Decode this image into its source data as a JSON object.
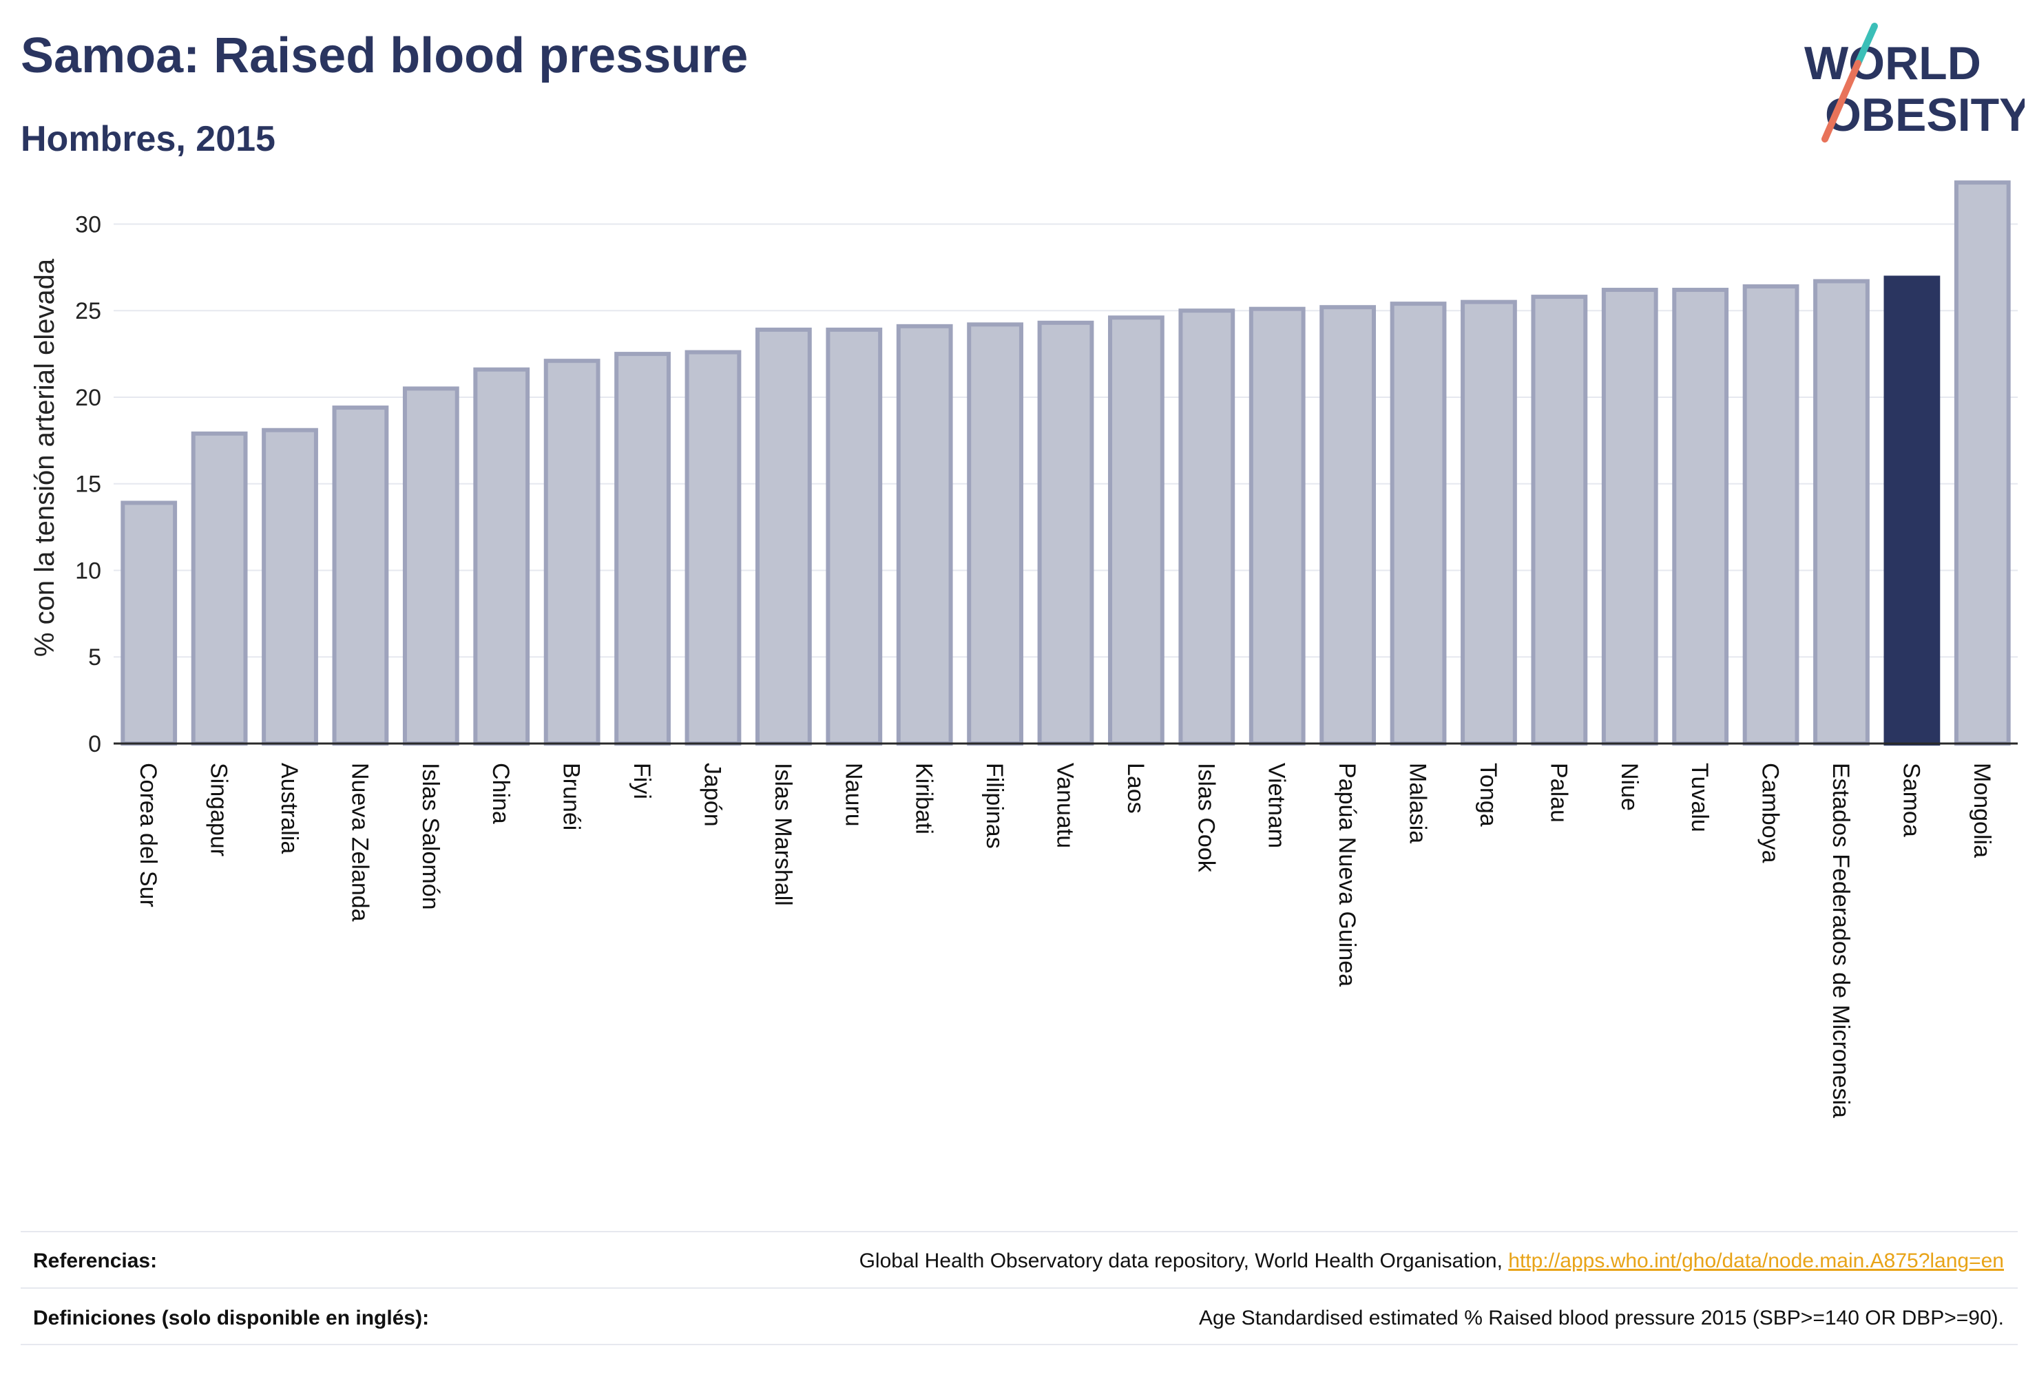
{
  "header": {
    "title": "Samoa: Raised blood pressure",
    "subtitle": "Hombres, 2015"
  },
  "logo": {
    "line1": "WORLD",
    "line2": "OBESITY",
    "accent_top": "#3bbfb8",
    "accent_bottom": "#e8735a",
    "text_color": "#2a3560"
  },
  "chart_data": {
    "type": "bar",
    "ylabel": "% con la tensión arterial elevada",
    "ylim": [
      0,
      33
    ],
    "yticks": [
      0,
      5,
      10,
      15,
      20,
      25,
      30
    ],
    "grid": true,
    "highlight": "Samoa",
    "colors": {
      "bar": "#bfc3d1",
      "bar_stroke": "#9ea3bc",
      "highlight": "#2a3560"
    },
    "categories": [
      "Corea del Sur",
      "Singapur",
      "Australia",
      "Nueva Zelanda",
      "Islas Salomón",
      "China",
      "Brunéi",
      "Fiyi",
      "Japón",
      "Islas Marshall",
      "Nauru",
      "Kiribati",
      "Filipinas",
      "Vanuatu",
      "Laos",
      "Islas Cook",
      "Vietnam",
      "Papúa Nueva Guinea",
      "Malasia",
      "Tonga",
      "Palau",
      "Niue",
      "Tuvalu",
      "Camboya",
      "Estados Federados de Micronesia",
      "Samoa",
      "Mongolia"
    ],
    "values": [
      13.9,
      17.9,
      18.1,
      19.4,
      20.5,
      21.6,
      22.1,
      22.5,
      22.6,
      23.9,
      23.9,
      24.1,
      24.2,
      24.3,
      24.6,
      25.0,
      25.1,
      25.2,
      25.4,
      25.5,
      25.8,
      26.2,
      26.2,
      26.4,
      26.7,
      26.9,
      32.4
    ]
  },
  "footer": {
    "references_label": "Referencias:",
    "references_text": "Global Health Observatory data repository, World Health Organisation, ",
    "references_link": "http://apps.who.int/gho/data/node.main.A875?lang=en",
    "definitions_label": "Definiciones (solo disponible en inglés):",
    "definitions_text": "Age Standardised estimated % Raised blood pressure 2015 (SBP>=140 OR DBP>=90)."
  }
}
